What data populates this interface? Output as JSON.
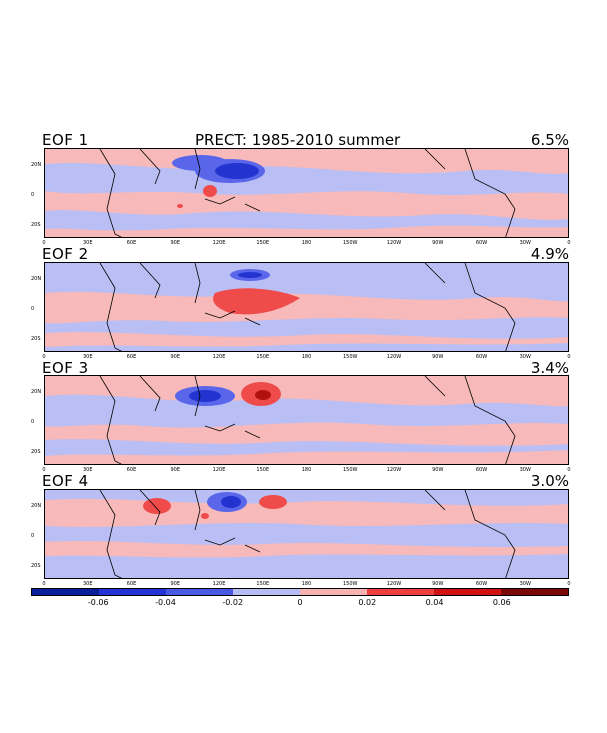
{
  "title": "PRECT: 1985-2010 summer",
  "panels": [
    {
      "label": "EOF 1",
      "variance": "6.5%"
    },
    {
      "label": "EOF 2",
      "variance": "4.9%"
    },
    {
      "label": "EOF 3",
      "variance": "3.4%"
    },
    {
      "label": "EOF 4",
      "variance": "3.0%"
    }
  ],
  "lon_ticks": [
    "0",
    "30E",
    "60E",
    "90E",
    "120E",
    "150E",
    "180",
    "150W",
    "120W",
    "90W",
    "60W",
    "30W",
    "0"
  ],
  "lat_ticks": [
    "20N",
    "0",
    "20S"
  ],
  "colorbar": {
    "colors": [
      "#0a1f9a",
      "#2433d6",
      "#4a58e6",
      "#b7bdf2",
      "#f5b3b3",
      "#ee4040",
      "#d01212",
      "#7a0808"
    ],
    "labels": [
      "-0.06",
      "-0.04",
      "-0.02",
      "0",
      "0.02",
      "0.04",
      "0.06"
    ]
  },
  "colors": {
    "neg_light": "#b9bff5",
    "neg_mid": "#5966ea",
    "neg_strong": "#2233d0",
    "pos_light": "#f7b9b9",
    "pos_mid": "#ef4b4b",
    "pos_strong": "#b01010"
  }
}
